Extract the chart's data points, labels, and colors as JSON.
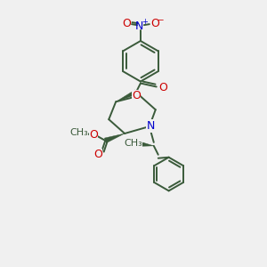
{
  "background_color": "#f0f0f0",
  "bond_color": "#3a5a3a",
  "atom_colors": {
    "O": "#cc0000",
    "N": "#0000cc",
    "C": "#3a5a3a"
  },
  "line_width": 1.4,
  "font_size": 8.5,
  "figsize": [
    3.0,
    3.0
  ],
  "dpi": 100
}
